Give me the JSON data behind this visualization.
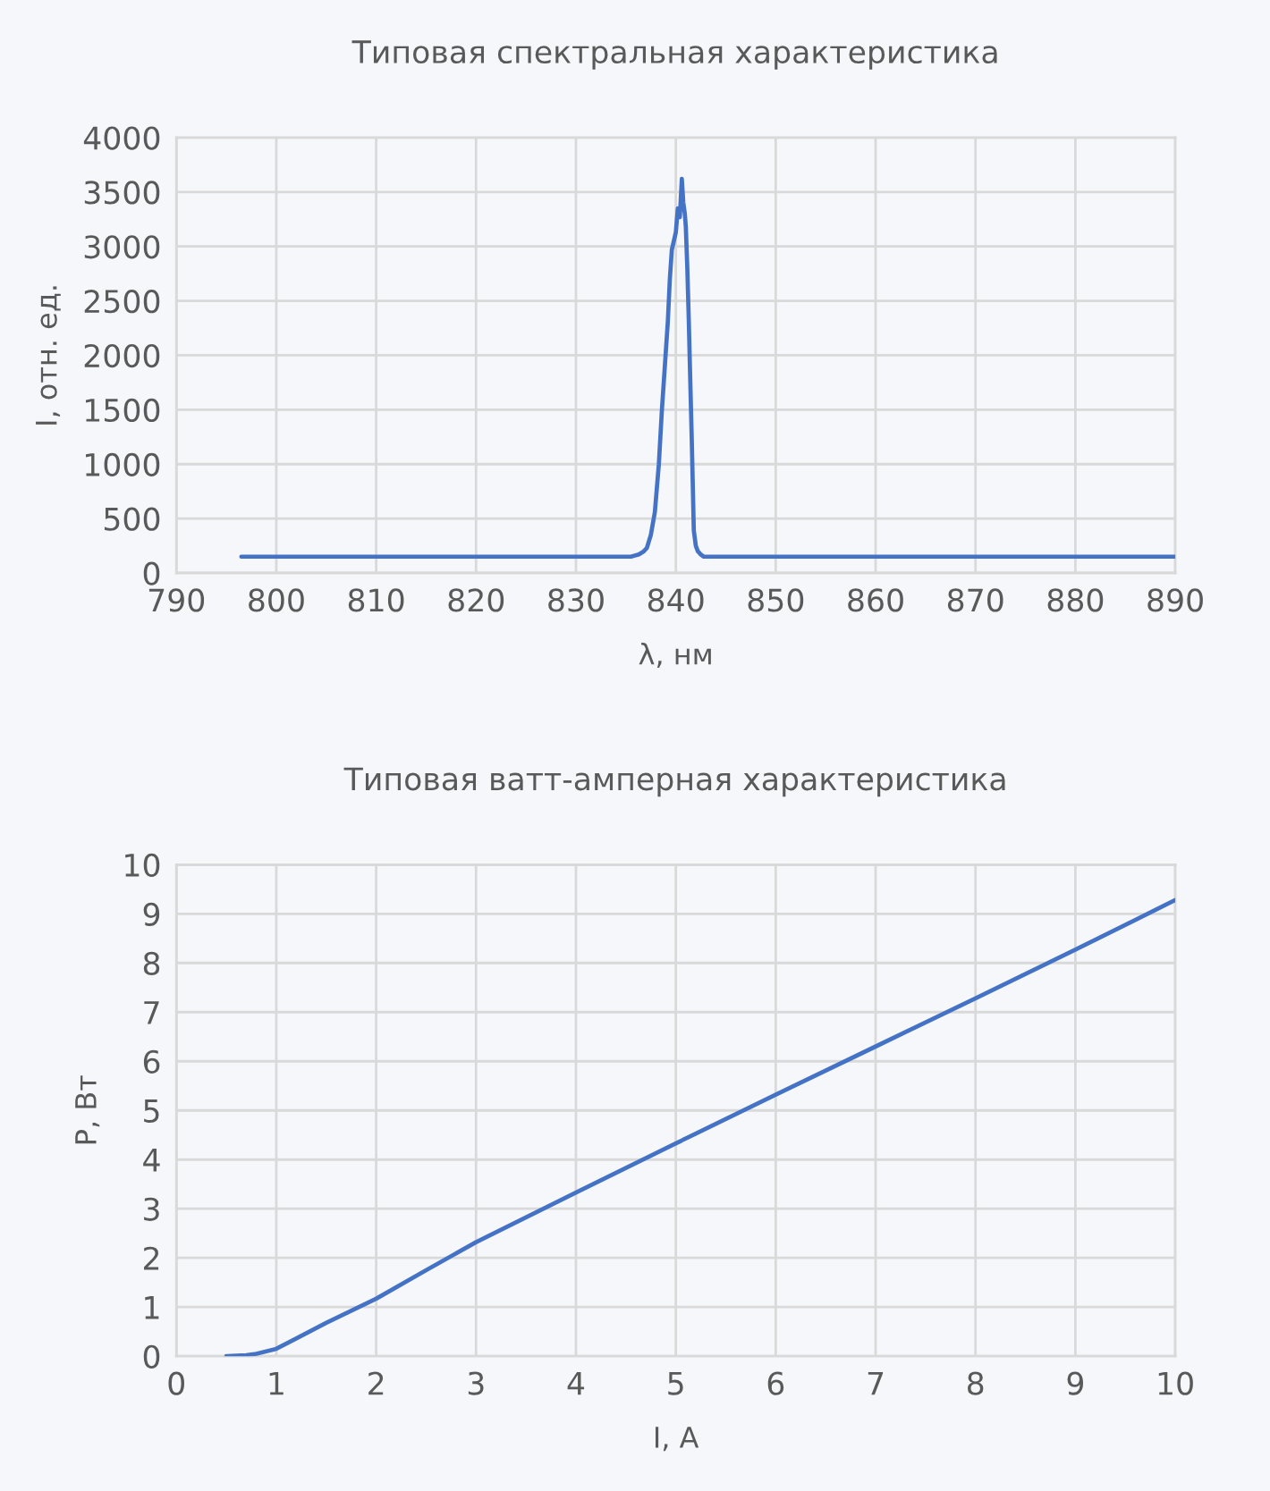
{
  "chart_data": [
    {
      "type": "line",
      "title": "Типовая спектральная характеристика",
      "xlabel": "λ, нм",
      "ylabel": "I, отн. ед.",
      "x": [
        796.5,
        800,
        805,
        810,
        815,
        820,
        825,
        830,
        834,
        835.5,
        836.3,
        836.8,
        837.1,
        837.5,
        837.9,
        838.3,
        838.6,
        838.9,
        839.2,
        839.4,
        839.6,
        839.8,
        840.0,
        840.2,
        840.4,
        840.6,
        840.75,
        840.9,
        841.0,
        841.15,
        841.3,
        841.45,
        841.6,
        841.8,
        842.0,
        842.2,
        842.5,
        842.8,
        844,
        850,
        855,
        860,
        865,
        870,
        875,
        880,
        885,
        890
      ],
      "series": [
        {
          "color": "#4472c4",
          "values": [
            150,
            150,
            150,
            150,
            150,
            150,
            150,
            150,
            150,
            150,
            170,
            200,
            230,
            350,
            560,
            1000,
            1490,
            1900,
            2310,
            2700,
            2970,
            3050,
            3130,
            3350,
            3270,
            3620,
            3400,
            3300,
            3180,
            2800,
            2310,
            1750,
            1210,
            390,
            250,
            200,
            170,
            150,
            150,
            150,
            150,
            150,
            150,
            150,
            150,
            150,
            150,
            150
          ]
        }
      ],
      "xlim": [
        790,
        890
      ],
      "xticks": [
        790,
        800,
        810,
        820,
        830,
        840,
        850,
        860,
        870,
        880,
        890
      ],
      "ylim": [
        0,
        4000
      ],
      "yticks": [
        0,
        500,
        1000,
        1500,
        2000,
        2500,
        3000,
        3500,
        4000
      ],
      "grid": true
    },
    {
      "type": "line",
      "title": "Типовая ватт-амперная характеристика",
      "xlabel": "I, A",
      "ylabel": "P, Вт",
      "x": [
        0.5,
        0.6,
        0.7,
        0.8,
        0.9,
        1.0,
        1.2,
        1.5,
        2,
        2.5,
        3,
        4,
        5,
        6,
        7,
        8,
        9,
        10
      ],
      "series": [
        {
          "color": "#4472c4",
          "values": [
            0,
            0.01,
            0.02,
            0.05,
            0.1,
            0.15,
            0.36,
            0.68,
            1.17,
            1.75,
            2.32,
            3.33,
            4.33,
            5.32,
            6.3,
            7.28,
            8.27,
            9.28
          ]
        }
      ],
      "xlim": [
        0,
        10
      ],
      "xticks": [
        0,
        1,
        2,
        3,
        4,
        5,
        6,
        7,
        8,
        9,
        10
      ],
      "ylim": [
        0,
        10
      ],
      "yticks": [
        0,
        1,
        2,
        3,
        4,
        5,
        6,
        7,
        8,
        9,
        10
      ],
      "grid": true
    }
  ]
}
